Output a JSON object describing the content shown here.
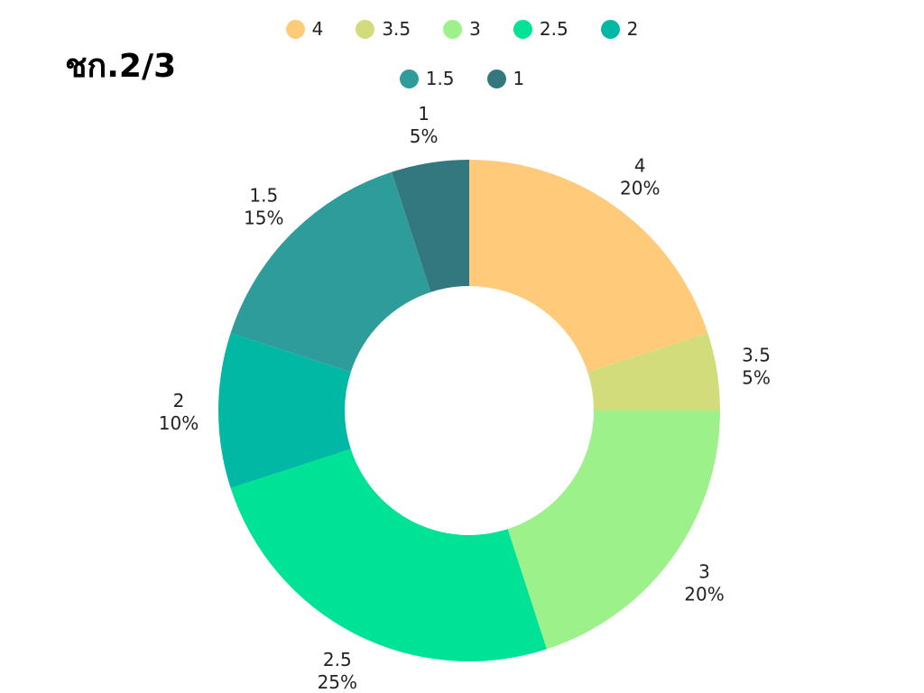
{
  "chart_data": {
    "type": "pie",
    "donut": true,
    "title": "ชก.2/3",
    "legend_placement": "top",
    "categories": [
      "4",
      "3.5",
      "3",
      "2.5",
      "2",
      "1.5",
      "1"
    ],
    "values": [
      20,
      5,
      20,
      25,
      10,
      15,
      5
    ],
    "labels": [
      "20%",
      "5%",
      "20%",
      "25%",
      "10%",
      "15%",
      "5%"
    ],
    "colors": [
      "#FFCA7A",
      "#D3DC7A",
      "#9DF18A",
      "#00E396",
      "#00B8A4",
      "#2F9C9C",
      "#33787F"
    ]
  }
}
